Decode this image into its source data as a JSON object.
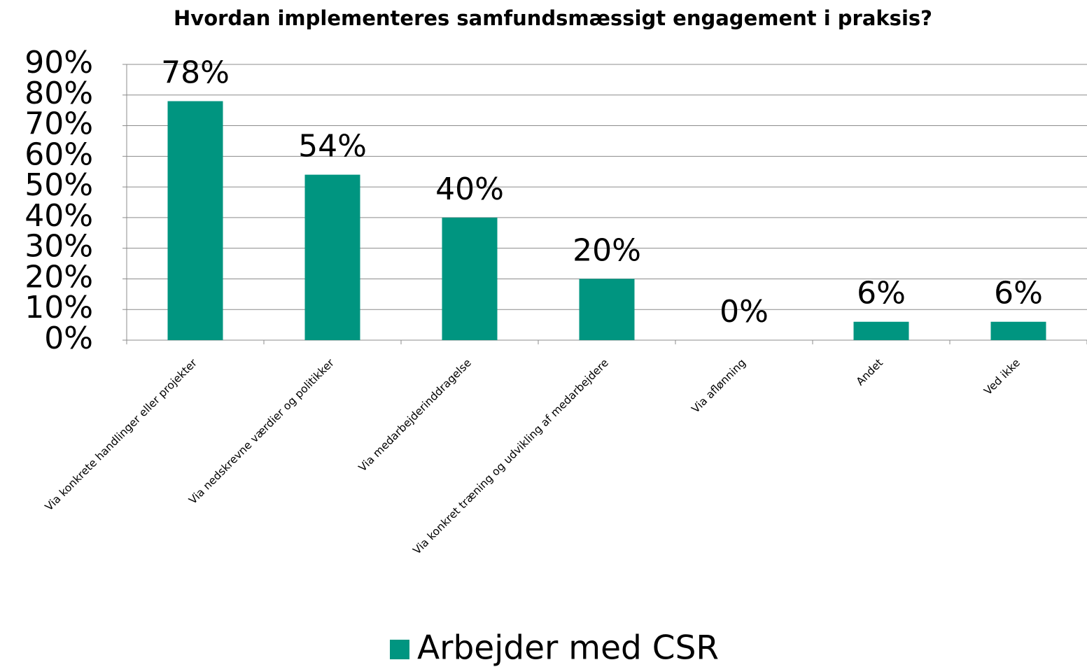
{
  "chart_data": {
    "type": "bar",
    "title": "Hvordan implementeres samfundsmæssigt engagement i praksis?",
    "categories": [
      "Via konkrete handlinger eller projekter",
      "Via nedskrevne værdier og politikker",
      "Via medarbejderinddragelse",
      "Via konkret træning og udvikling af medarbejdere",
      "Via aflønning",
      "Andet",
      "Ved ikke"
    ],
    "series": [
      {
        "name": "Arbejder med CSR",
        "color": "#009580",
        "values": [
          78,
          54,
          40,
          20,
          0,
          6,
          6
        ],
        "value_labels": [
          "78%",
          "54%",
          "40%",
          "20%",
          "0%",
          "6%",
          "6%"
        ]
      }
    ],
    "ylim": [
      0,
      90
    ],
    "yticks": [
      {
        "value": 0,
        "label": "0%"
      },
      {
        "value": 10,
        "label": "10%"
      },
      {
        "value": 20,
        "label": "20%"
      },
      {
        "value": 30,
        "label": "30%"
      },
      {
        "value": 40,
        "label": "40%"
      },
      {
        "value": 50,
        "label": "50%"
      },
      {
        "value": 60,
        "label": "60%"
      },
      {
        "value": 70,
        "label": "70%"
      },
      {
        "value": 80,
        "label": "80%"
      },
      {
        "value": 90,
        "label": "90%"
      }
    ],
    "grid": true,
    "legend": "bottom"
  }
}
